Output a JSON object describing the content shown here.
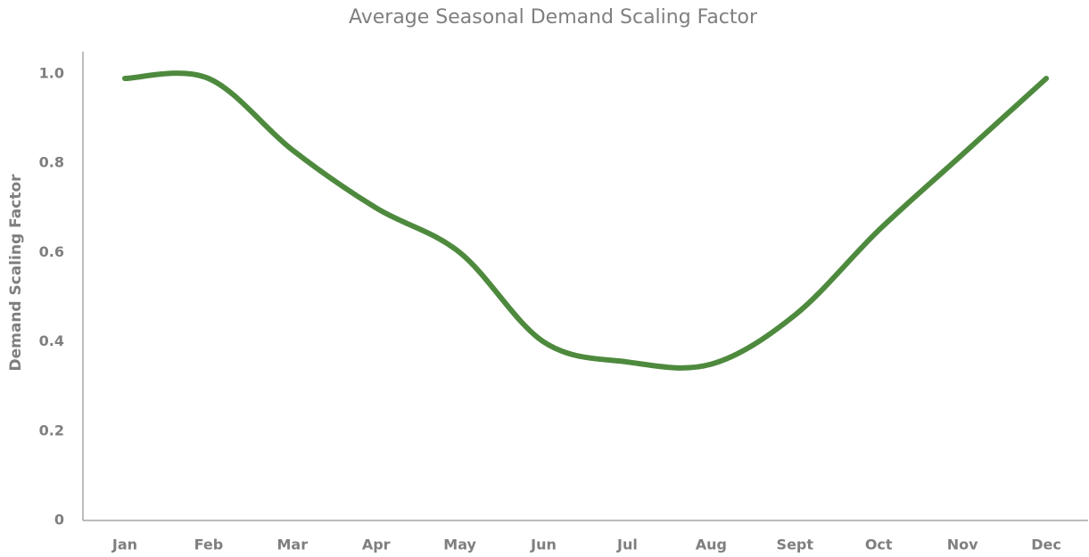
{
  "chart_data": {
    "type": "line",
    "title": "Average Seasonal Demand Scaling Factor",
    "y_label": "Demand Scaling Factor",
    "categories": [
      "Jan",
      "Feb",
      "Mar",
      "Apr",
      "May",
      "Jun",
      "Jul",
      "Aug",
      "Sept",
      "Oct",
      "Nov",
      "Dec"
    ],
    "series": [
      {
        "name": "Demand Scaling Factor",
        "color": "#4e8a3e",
        "values": [
          0.99,
          0.99,
          0.83,
          0.7,
          0.6,
          0.4,
          0.355,
          0.35,
          0.46,
          0.65,
          0.82,
          0.99
        ]
      }
    ],
    "ylim": [
      0,
      1.05
    ],
    "yticks": [
      0,
      0.2,
      0.4,
      0.6,
      0.8,
      {
        "value": 1.0,
        "label": "1.0"
      }
    ],
    "grid": false,
    "smooth": true
  }
}
